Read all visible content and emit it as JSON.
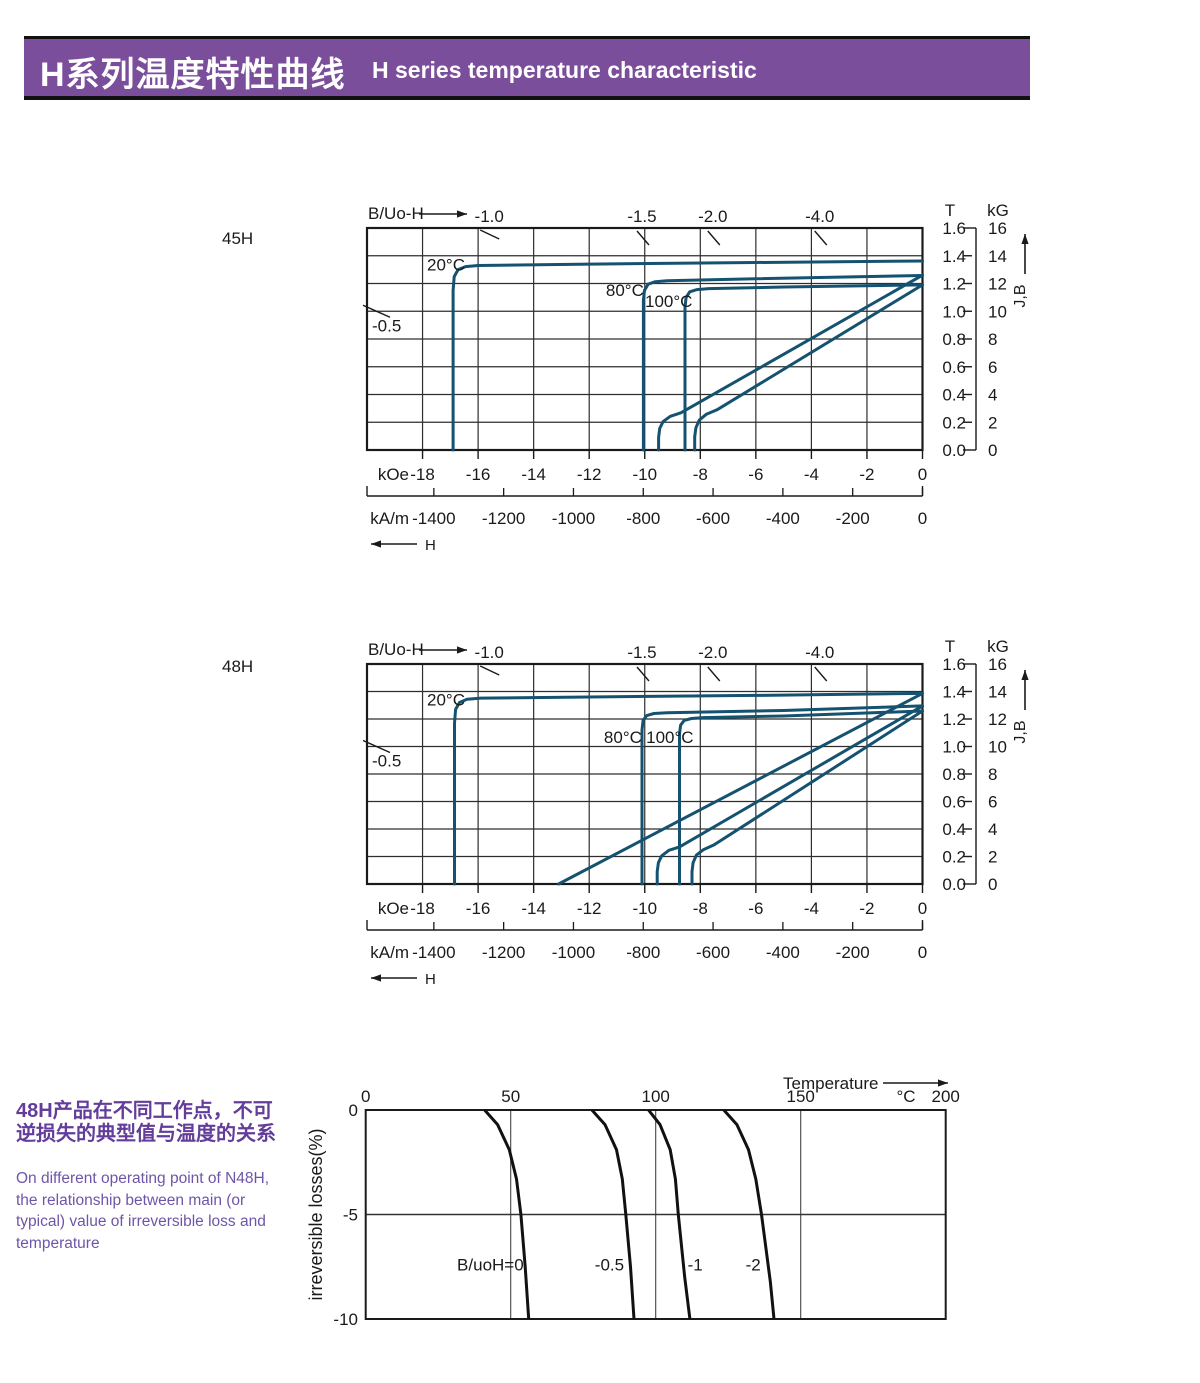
{
  "colors": {
    "banner": "#7a4e9b",
    "curve": "#145270",
    "loss_curve": "#111111",
    "ink": "#1a1a1a",
    "desc_zh": "#633d99",
    "desc_en": "#6f55a8"
  },
  "header": {
    "title_zh": "H系列温度特性曲线",
    "title_en": "H  series temperature characteristic"
  },
  "description": {
    "zh_lines": [
      "48H产品在不同工作点，不可",
      "逆损失的典型值与温度的关系"
    ],
    "en_lines": [
      "On different operating point of N48H,",
      "the relationship between main (or",
      "typical) value of irreversible loss and",
      "temperature"
    ]
  },
  "chart_data": [
    {
      "type": "line",
      "name": "45H",
      "title_top": "B/Uo-H",
      "x_axis": {
        "unit1": "kOe",
        "ticks_koe": [
          -18,
          -16,
          -14,
          -12,
          -10,
          -8,
          -6,
          -4,
          -2,
          0
        ],
        "unit2": "kA/m",
        "ticks_kam": [
          -1400,
          -1200,
          -1000,
          -800,
          -600,
          -400,
          -200,
          0
        ],
        "arrow": "H",
        "xlim_koe": [
          -20,
          0
        ]
      },
      "y_axis": {
        "unit1": "T",
        "ticks_t": [
          "1.6",
          "1.4",
          "1.2",
          "1.0",
          "0.8",
          "0.6",
          "0.4",
          "0.2",
          "0.0"
        ],
        "unit2": "kG",
        "ticks_kg": [
          16,
          14,
          12,
          10,
          8,
          6,
          4,
          2,
          0
        ],
        "arrow": "J,B",
        "ylim_t": [
          0,
          1.6
        ]
      },
      "load_lines": [
        {
          "label": "-0.5",
          "edge": "left",
          "t": 1.0
        },
        {
          "label": "-1.0",
          "koe": -15.6
        },
        {
          "label": "-1.5",
          "koe": -10.1
        },
        {
          "label": "-2.0",
          "koe": -7.55
        },
        {
          "label": "-4.0",
          "koe": -3.7
        }
      ],
      "series": [
        {
          "name": "J-20C",
          "label": "20°C",
          "label_at": [
            -17.84,
            1.337
          ],
          "points": [
            [
              -16.9,
              0
            ],
            [
              -16.9,
              1.15
            ],
            [
              -16.86,
              1.25
            ],
            [
              -16.72,
              1.3
            ],
            [
              -16.45,
              1.322
            ],
            [
              -16.0,
              1.33
            ],
            [
              -12,
              1.34
            ],
            [
              -6,
              1.351
            ],
            [
              0,
              1.362
            ]
          ]
        },
        {
          "name": "J-80C",
          "label": "80°C",
          "label_at": [
            -11.4,
            1.153
          ],
          "points": [
            [
              -10.05,
              0
            ],
            [
              -10.05,
              1.08
            ],
            [
              -10.01,
              1.15
            ],
            [
              -9.88,
              1.195
            ],
            [
              -9.62,
              1.213
            ],
            [
              -9.2,
              1.22
            ],
            [
              -6,
              1.234
            ],
            [
              0,
              1.258
            ]
          ]
        },
        {
          "name": "J-100C",
          "label": "100°C",
          "label_at": [
            -9.99,
            1.074
          ],
          "points": [
            [
              -8.55,
              0
            ],
            [
              -8.55,
              1.03
            ],
            [
              -8.51,
              1.1
            ],
            [
              -8.38,
              1.14
            ],
            [
              -8.12,
              1.156
            ],
            [
              -7.7,
              1.163
            ],
            [
              -5,
              1.175
            ],
            [
              0,
              1.19
            ]
          ]
        },
        {
          "name": "B-80C",
          "points": [
            [
              -9.5,
              0
            ],
            [
              -9.5,
              0.09
            ],
            [
              -9.46,
              0.155
            ],
            [
              -9.34,
              0.205
            ],
            [
              -9.08,
              0.243
            ],
            [
              -8.7,
              0.268
            ],
            [
              0,
              1.26
            ]
          ]
        },
        {
          "name": "B-100C",
          "points": [
            [
              -8.2,
              0
            ],
            [
              -8.2,
              0.095
            ],
            [
              -8.16,
              0.16
            ],
            [
              -8.04,
              0.215
            ],
            [
              -7.78,
              0.258
            ],
            [
              -7.4,
              0.29
            ],
            [
              0,
              1.19
            ]
          ]
        }
      ]
    },
    {
      "type": "line",
      "name": "48H",
      "title_top": "B/Uo-H",
      "x_axis": {
        "unit1": "kOe",
        "ticks_koe": [
          -18,
          -16,
          -14,
          -12,
          -10,
          -8,
          -6,
          -4,
          -2,
          0
        ],
        "unit2": "kA/m",
        "ticks_kam": [
          -1400,
          -1200,
          -1000,
          -800,
          -600,
          -400,
          -200,
          0
        ],
        "arrow": "H",
        "xlim_koe": [
          -20,
          0
        ]
      },
      "y_axis": {
        "unit1": "T",
        "ticks_t": [
          "1.6",
          "1.4",
          "1.2",
          "1.0",
          "0.8",
          "0.6",
          "0.4",
          "0.2",
          "0.0"
        ],
        "unit2": "kG",
        "ticks_kg": [
          16,
          14,
          12,
          10,
          8,
          6,
          4,
          2,
          0
        ],
        "arrow": "J,B",
        "ylim_t": [
          0,
          1.6
        ]
      },
      "load_lines": [
        {
          "label": "-0.5",
          "edge": "left",
          "t": 1.0
        },
        {
          "label": "-1.0",
          "koe": -15.6
        },
        {
          "label": "-1.5",
          "koe": -10.1
        },
        {
          "label": "-2.0",
          "koe": -7.55
        },
        {
          "label": "-4.0",
          "koe": -3.7
        }
      ],
      "series": [
        {
          "name": "J-20C",
          "label": "20°C",
          "label_at": [
            -17.84,
            1.342
          ],
          "points": [
            [
              -16.85,
              0
            ],
            [
              -16.85,
              1.17
            ],
            [
              -16.81,
              1.27
            ],
            [
              -16.67,
              1.32
            ],
            [
              -16.4,
              1.343
            ],
            [
              -15.9,
              1.352
            ],
            [
              -12,
              1.36
            ],
            [
              -6,
              1.372
            ],
            [
              0,
              1.386
            ]
          ]
        },
        {
          "name": "J-80C",
          "label": "80°C",
          "label_at": [
            -11.47,
            1.069
          ],
          "points": [
            [
              -10.1,
              0
            ],
            [
              -10.1,
              1.12
            ],
            [
              -10.06,
              1.19
            ],
            [
              -9.93,
              1.225
            ],
            [
              -9.67,
              1.24
            ],
            [
              -9.2,
              1.246
            ],
            [
              -5,
              1.262
            ],
            [
              0,
              1.295
            ]
          ]
        },
        {
          "name": "J-100C",
          "label": "100°C",
          "label_at": [
            -9.95,
            1.069
          ],
          "points": [
            [
              -8.75,
              0
            ],
            [
              -8.75,
              1.09
            ],
            [
              -8.71,
              1.155
            ],
            [
              -8.58,
              1.19
            ],
            [
              -8.32,
              1.204
            ],
            [
              -7.9,
              1.21
            ],
            [
              -5,
              1.222
            ],
            [
              0,
              1.258
            ]
          ]
        },
        {
          "name": "B-20C",
          "points": [
            [
              -13.1,
              0
            ],
            [
              0,
              1.386
            ]
          ]
        },
        {
          "name": "B-80C",
          "points": [
            [
              -9.55,
              0
            ],
            [
              -9.55,
              0.09
            ],
            [
              -9.51,
              0.155
            ],
            [
              -9.39,
              0.205
            ],
            [
              -9.13,
              0.245
            ],
            [
              -8.75,
              0.27
            ],
            [
              0,
              1.295
            ]
          ]
        },
        {
          "name": "B-100C",
          "points": [
            [
              -8.3,
              0
            ],
            [
              -8.3,
              0.09
            ],
            [
              -8.26,
              0.155
            ],
            [
              -8.14,
              0.21
            ],
            [
              -7.88,
              0.25
            ],
            [
              -7.5,
              0.285
            ],
            [
              0,
              1.258
            ]
          ]
        }
      ]
    },
    {
      "type": "line",
      "name": "48H irreversible losses vs temperature",
      "x_axis": {
        "label": "Temperature",
        "unit": "°C",
        "ticks": [
          0,
          50,
          100,
          150,
          200
        ],
        "xlim": [
          0,
          200
        ]
      },
      "y_axis": {
        "label": "irreversible  losses(%)",
        "ticks": [
          0,
          -5,
          -10
        ],
        "ylim": [
          -10,
          0
        ]
      },
      "series": [
        {
          "name": "BuoH-0",
          "label": "B/uoH=0",
          "label_at": [
            31.5,
            -7.4
          ],
          "points": [
            [
              41,
              0
            ],
            [
              45.5,
              -0.7
            ],
            [
              49.5,
              -1.9
            ],
            [
              52,
              -3.3
            ],
            [
              53.5,
              -5
            ],
            [
              55,
              -7.5
            ],
            [
              56.2,
              -10
            ]
          ]
        },
        {
          "name": "BuoH-05",
          "label": "-0.5",
          "label_at": [
            79,
            -7.4
          ],
          "points": [
            [
              78,
              0
            ],
            [
              82.5,
              -0.7
            ],
            [
              86.5,
              -1.9
            ],
            [
              88.5,
              -3.3
            ],
            [
              89.7,
              -5
            ],
            [
              91.3,
              -7.5
            ],
            [
              92.5,
              -10
            ]
          ]
        },
        {
          "name": "BuoH-1",
          "label": "-1",
          "label_at": [
            111,
            -7.4
          ],
          "points": [
            [
              97.5,
              0
            ],
            [
              101.5,
              -0.7
            ],
            [
              105,
              -1.9
            ],
            [
              106.8,
              -3.3
            ],
            [
              107.8,
              -5
            ],
            [
              110,
              -8
            ],
            [
              111.8,
              -10
            ]
          ]
        },
        {
          "name": "BuoH-2",
          "label": "-2",
          "label_at": [
            131,
            -7.4
          ],
          "points": [
            [
              123.5,
              0
            ],
            [
              128,
              -0.7
            ],
            [
              132,
              -1.9
            ],
            [
              134.5,
              -3.3
            ],
            [
              136.5,
              -5
            ],
            [
              139.5,
              -8.2
            ],
            [
              140.8,
              -10
            ]
          ]
        }
      ]
    }
  ]
}
